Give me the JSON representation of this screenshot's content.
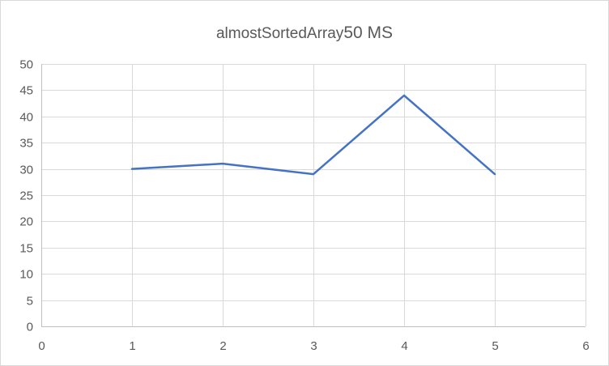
{
  "chart_data": {
    "type": "scatter",
    "style": "lines",
    "title_main": "almostSortedArray",
    "title_suffix": "50 MS",
    "xlabel": "",
    "ylabel": "",
    "xlim": [
      0,
      6
    ],
    "ylim": [
      0,
      50
    ],
    "x_ticks": [
      0,
      1,
      2,
      3,
      4,
      5,
      6
    ],
    "y_ticks": [
      0,
      5,
      10,
      15,
      20,
      25,
      30,
      35,
      40,
      45,
      50
    ],
    "grid": "both",
    "legend": "none",
    "series": [
      {
        "x": [
          1,
          2,
          3,
          4,
          5
        ],
        "y": [
          30,
          31,
          29,
          44,
          29
        ],
        "color": "#4472c4"
      }
    ]
  }
}
